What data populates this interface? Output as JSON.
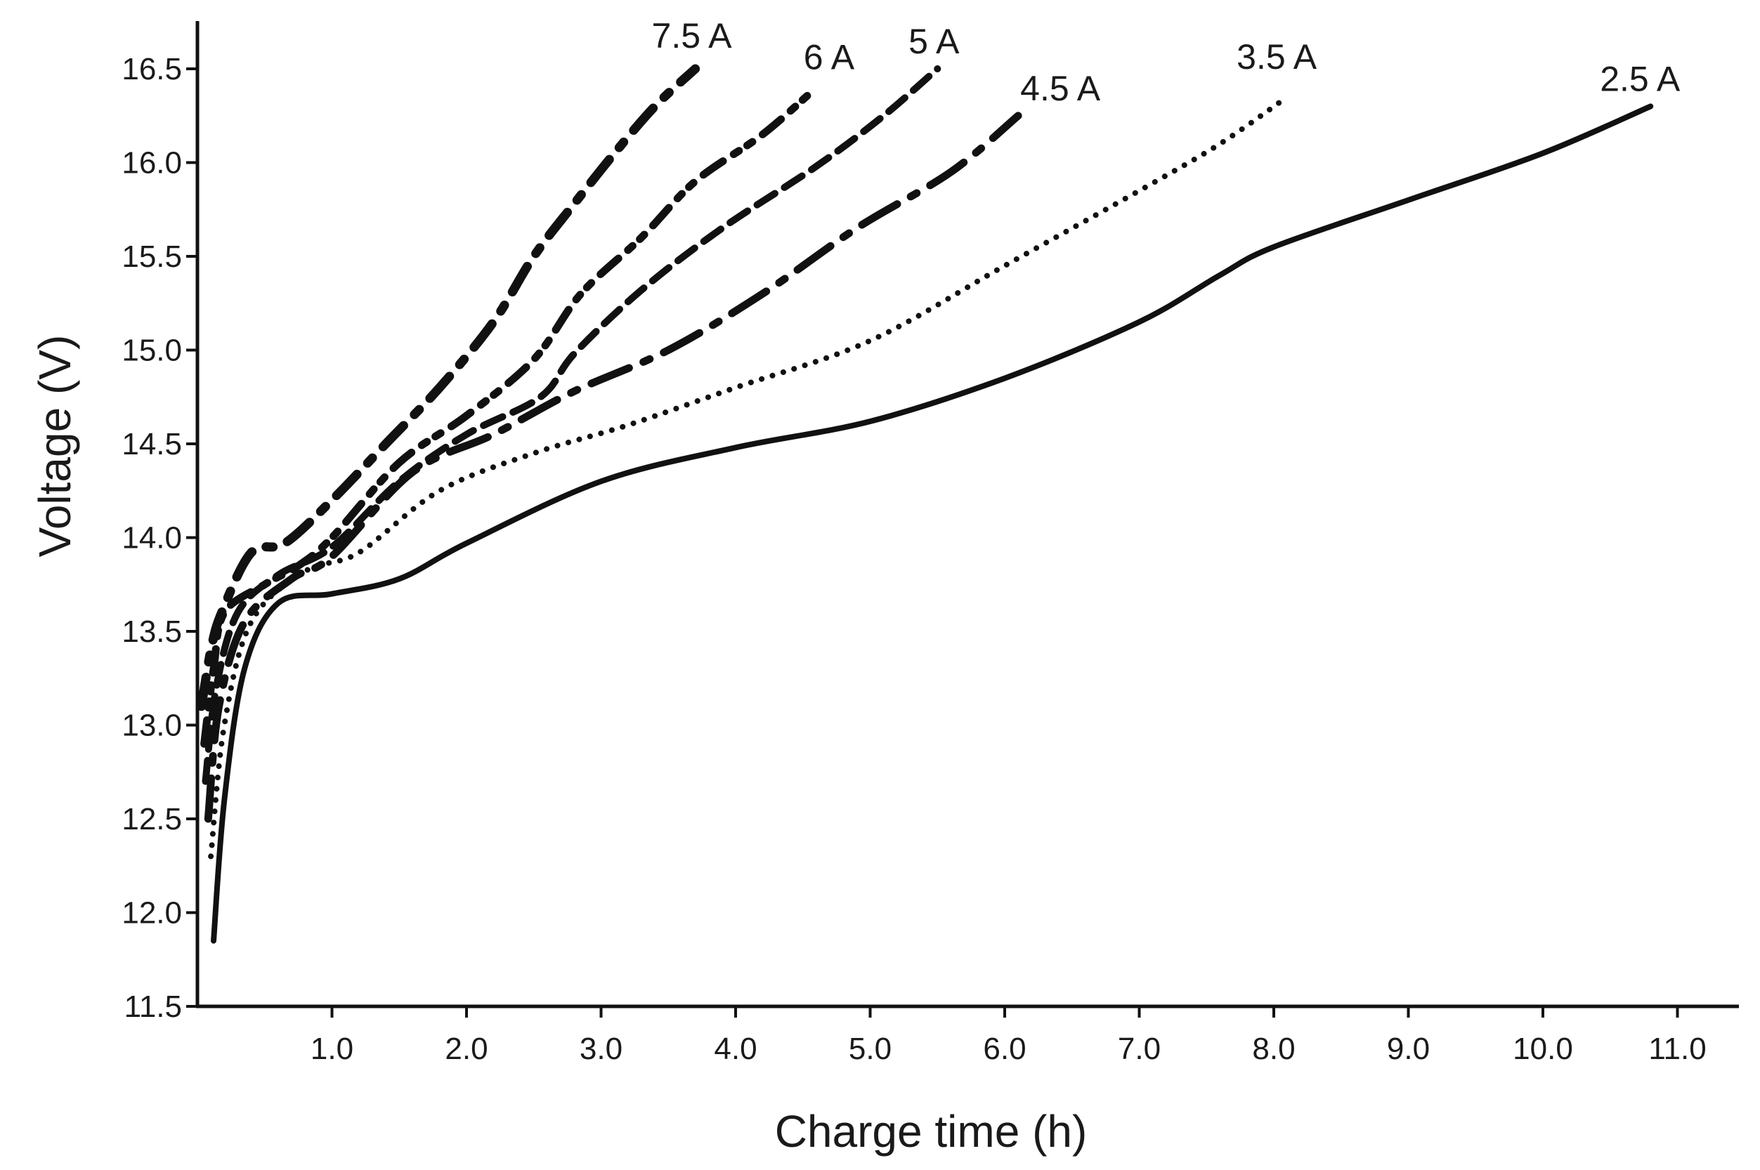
{
  "chart_data": {
    "type": "line",
    "title": "",
    "xlabel": "Charge time (h)",
    "ylabel": "Voltage (V)",
    "xlim": [
      0,
      11.5
    ],
    "ylim": [
      11.5,
      16.65
    ],
    "grid": false,
    "x_ticks": [
      "1.0",
      "2.0",
      "3.0",
      "4.0",
      "5.0",
      "6.0",
      "7.0",
      "8.0",
      "9.0",
      "10.0",
      "11.0"
    ],
    "y_ticks": [
      "11.5",
      "12.0",
      "12.5",
      "13.0",
      "13.5",
      "14.0",
      "14.5",
      "15.0",
      "15.5",
      "16.0",
      "16.5"
    ],
    "series": [
      {
        "name": "7.5 A",
        "style": "dash-dot-heavy",
        "points": [
          [
            0.03,
            13.1
          ],
          [
            0.1,
            13.4
          ],
          [
            0.18,
            13.6
          ],
          [
            0.4,
            13.92
          ],
          [
            0.65,
            13.97
          ],
          [
            1.0,
            14.2
          ],
          [
            1.4,
            14.5
          ],
          [
            1.8,
            14.8
          ],
          [
            2.2,
            15.15
          ],
          [
            2.5,
            15.5
          ],
          [
            2.8,
            15.78
          ],
          [
            3.1,
            16.05
          ],
          [
            3.4,
            16.3
          ],
          [
            3.7,
            16.5
          ]
        ]
      },
      {
        "name": "6 A",
        "style": "dash-dot-dot",
        "points": [
          [
            0.05,
            12.9
          ],
          [
            0.12,
            13.3
          ],
          [
            0.2,
            13.6
          ],
          [
            0.5,
            13.75
          ],
          [
            0.75,
            13.85
          ],
          [
            1.0,
            14.0
          ],
          [
            1.5,
            14.4
          ],
          [
            2.0,
            14.65
          ],
          [
            2.5,
            14.95
          ],
          [
            2.85,
            15.3
          ],
          [
            3.3,
            15.6
          ],
          [
            3.7,
            15.9
          ],
          [
            4.2,
            16.15
          ],
          [
            4.6,
            16.4
          ]
        ]
      },
      {
        "name": "5 A",
        "style": "dashed",
        "points": [
          [
            0.06,
            12.7
          ],
          [
            0.14,
            13.2
          ],
          [
            0.3,
            13.6
          ],
          [
            0.6,
            13.8
          ],
          [
            1.0,
            13.95
          ],
          [
            1.5,
            14.3
          ],
          [
            2.0,
            14.55
          ],
          [
            2.55,
            14.75
          ],
          [
            2.8,
            14.98
          ],
          [
            3.3,
            15.32
          ],
          [
            3.9,
            15.65
          ],
          [
            4.6,
            15.98
          ],
          [
            5.1,
            16.25
          ],
          [
            5.5,
            16.5
          ]
        ]
      },
      {
        "name": "4.5 A",
        "style": "long-dash-dot",
        "points": [
          [
            0.08,
            12.5
          ],
          [
            0.16,
            13.1
          ],
          [
            0.35,
            13.55
          ],
          [
            0.7,
            13.78
          ],
          [
            1.0,
            13.9
          ],
          [
            1.6,
            14.35
          ],
          [
            2.2,
            14.55
          ],
          [
            2.8,
            14.78
          ],
          [
            3.5,
            15.0
          ],
          [
            4.2,
            15.3
          ],
          [
            4.9,
            15.65
          ],
          [
            5.6,
            15.95
          ],
          [
            6.1,
            16.25
          ]
        ]
      },
      {
        "name": "3.5 A",
        "style": "dotted",
        "points": [
          [
            0.1,
            12.3
          ],
          [
            0.2,
            13.0
          ],
          [
            0.4,
            13.55
          ],
          [
            0.8,
            13.82
          ],
          [
            1.2,
            13.92
          ],
          [
            1.8,
            14.25
          ],
          [
            2.5,
            14.45
          ],
          [
            3.2,
            14.6
          ],
          [
            4.0,
            14.8
          ],
          [
            5.0,
            15.05
          ],
          [
            6.0,
            15.45
          ],
          [
            7.0,
            15.85
          ],
          [
            7.6,
            16.1
          ],
          [
            8.1,
            16.35
          ]
        ]
      },
      {
        "name": "2.5 A",
        "style": "solid",
        "points": [
          [
            0.12,
            11.85
          ],
          [
            0.2,
            12.6
          ],
          [
            0.35,
            13.3
          ],
          [
            0.6,
            13.65
          ],
          [
            1.0,
            13.7
          ],
          [
            1.5,
            13.78
          ],
          [
            2.0,
            13.97
          ],
          [
            3.0,
            14.3
          ],
          [
            4.0,
            14.48
          ],
          [
            5.0,
            14.62
          ],
          [
            6.0,
            14.85
          ],
          [
            7.0,
            15.15
          ],
          [
            7.6,
            15.4
          ],
          [
            8.0,
            15.55
          ],
          [
            9.0,
            15.8
          ],
          [
            10.0,
            16.05
          ],
          [
            10.8,
            16.3
          ]
        ]
      }
    ]
  }
}
